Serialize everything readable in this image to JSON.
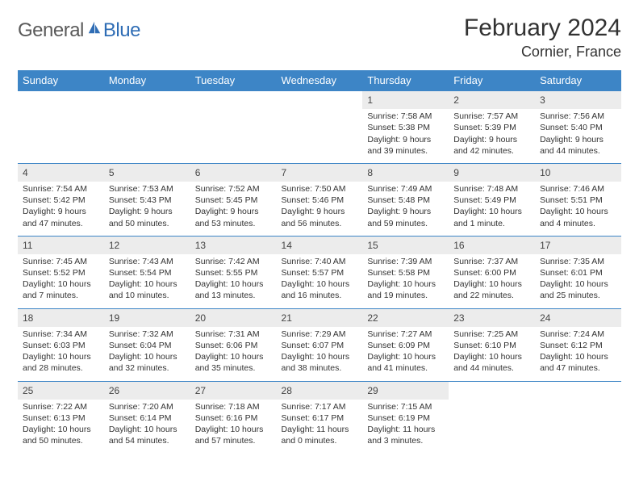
{
  "logo": {
    "text1": "General",
    "text2": "Blue"
  },
  "title": "February 2024",
  "location": "Cornier, France",
  "colors": {
    "header_bg": "#3d85c6",
    "header_text": "#ffffff",
    "daynum_bg": "#ececec",
    "border": "#3d85c6",
    "text": "#333333",
    "title_text": "#323232",
    "logo_gray": "#5a5a5a",
    "logo_blue": "#2f6db5"
  },
  "dayHeaders": [
    "Sunday",
    "Monday",
    "Tuesday",
    "Wednesday",
    "Thursday",
    "Friday",
    "Saturday"
  ],
  "weeks": [
    [
      null,
      null,
      null,
      null,
      {
        "n": "1",
        "sr": "7:58 AM",
        "ss": "5:38 PM",
        "dl": "9 hours and 39 minutes."
      },
      {
        "n": "2",
        "sr": "7:57 AM",
        "ss": "5:39 PM",
        "dl": "9 hours and 42 minutes."
      },
      {
        "n": "3",
        "sr": "7:56 AM",
        "ss": "5:40 PM",
        "dl": "9 hours and 44 minutes."
      }
    ],
    [
      {
        "n": "4",
        "sr": "7:54 AM",
        "ss": "5:42 PM",
        "dl": "9 hours and 47 minutes."
      },
      {
        "n": "5",
        "sr": "7:53 AM",
        "ss": "5:43 PM",
        "dl": "9 hours and 50 minutes."
      },
      {
        "n": "6",
        "sr": "7:52 AM",
        "ss": "5:45 PM",
        "dl": "9 hours and 53 minutes."
      },
      {
        "n": "7",
        "sr": "7:50 AM",
        "ss": "5:46 PM",
        "dl": "9 hours and 56 minutes."
      },
      {
        "n": "8",
        "sr": "7:49 AM",
        "ss": "5:48 PM",
        "dl": "9 hours and 59 minutes."
      },
      {
        "n": "9",
        "sr": "7:48 AM",
        "ss": "5:49 PM",
        "dl": "10 hours and 1 minute."
      },
      {
        "n": "10",
        "sr": "7:46 AM",
        "ss": "5:51 PM",
        "dl": "10 hours and 4 minutes."
      }
    ],
    [
      {
        "n": "11",
        "sr": "7:45 AM",
        "ss": "5:52 PM",
        "dl": "10 hours and 7 minutes."
      },
      {
        "n": "12",
        "sr": "7:43 AM",
        "ss": "5:54 PM",
        "dl": "10 hours and 10 minutes."
      },
      {
        "n": "13",
        "sr": "7:42 AM",
        "ss": "5:55 PM",
        "dl": "10 hours and 13 minutes."
      },
      {
        "n": "14",
        "sr": "7:40 AM",
        "ss": "5:57 PM",
        "dl": "10 hours and 16 minutes."
      },
      {
        "n": "15",
        "sr": "7:39 AM",
        "ss": "5:58 PM",
        "dl": "10 hours and 19 minutes."
      },
      {
        "n": "16",
        "sr": "7:37 AM",
        "ss": "6:00 PM",
        "dl": "10 hours and 22 minutes."
      },
      {
        "n": "17",
        "sr": "7:35 AM",
        "ss": "6:01 PM",
        "dl": "10 hours and 25 minutes."
      }
    ],
    [
      {
        "n": "18",
        "sr": "7:34 AM",
        "ss": "6:03 PM",
        "dl": "10 hours and 28 minutes."
      },
      {
        "n": "19",
        "sr": "7:32 AM",
        "ss": "6:04 PM",
        "dl": "10 hours and 32 minutes."
      },
      {
        "n": "20",
        "sr": "7:31 AM",
        "ss": "6:06 PM",
        "dl": "10 hours and 35 minutes."
      },
      {
        "n": "21",
        "sr": "7:29 AM",
        "ss": "6:07 PM",
        "dl": "10 hours and 38 minutes."
      },
      {
        "n": "22",
        "sr": "7:27 AM",
        "ss": "6:09 PM",
        "dl": "10 hours and 41 minutes."
      },
      {
        "n": "23",
        "sr": "7:25 AM",
        "ss": "6:10 PM",
        "dl": "10 hours and 44 minutes."
      },
      {
        "n": "24",
        "sr": "7:24 AM",
        "ss": "6:12 PM",
        "dl": "10 hours and 47 minutes."
      }
    ],
    [
      {
        "n": "25",
        "sr": "7:22 AM",
        "ss": "6:13 PM",
        "dl": "10 hours and 50 minutes."
      },
      {
        "n": "26",
        "sr": "7:20 AM",
        "ss": "6:14 PM",
        "dl": "10 hours and 54 minutes."
      },
      {
        "n": "27",
        "sr": "7:18 AM",
        "ss": "6:16 PM",
        "dl": "10 hours and 57 minutes."
      },
      {
        "n": "28",
        "sr": "7:17 AM",
        "ss": "6:17 PM",
        "dl": "11 hours and 0 minutes."
      },
      {
        "n": "29",
        "sr": "7:15 AM",
        "ss": "6:19 PM",
        "dl": "11 hours and 3 minutes."
      },
      null,
      null
    ]
  ],
  "labels": {
    "sunrise": "Sunrise:",
    "sunset": "Sunset:",
    "daylight": "Daylight:"
  }
}
